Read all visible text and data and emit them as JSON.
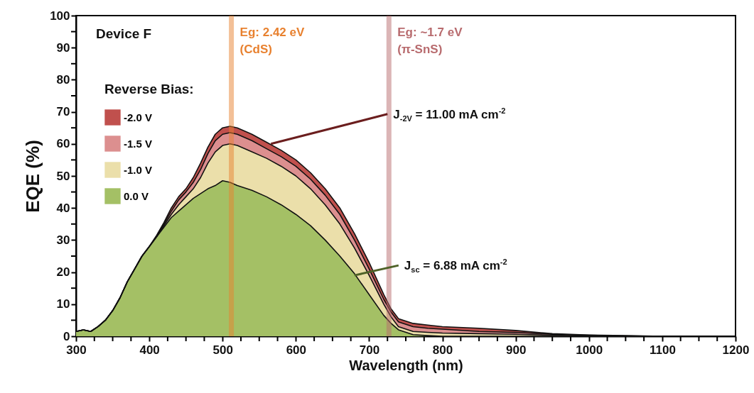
{
  "chart_data": {
    "type": "area",
    "xlabel": "Wavelength (nm)",
    "ylabel": "EQE (%)",
    "legend_title": "Reverse Bias:",
    "legend": "top left",
    "grid": false,
    "x": [
      300,
      310,
      320,
      330,
      340,
      350,
      360,
      370,
      380,
      390,
      400,
      410,
      420,
      430,
      440,
      450,
      460,
      470,
      480,
      490,
      500,
      510,
      520,
      540,
      560,
      580,
      600,
      620,
      640,
      660,
      680,
      700,
      720,
      730,
      740,
      760,
      780,
      800,
      850,
      900,
      950,
      1000,
      1050,
      1100
    ],
    "series": [
      {
        "name": "-2.0 V",
        "color": "#c0504d",
        "values": [
          1.5,
          2,
          1.5,
          3,
          5,
          8,
          12,
          17,
          21,
          25,
          28,
          31.5,
          35.5,
          40,
          43.5,
          46,
          49.5,
          54,
          59,
          63,
          65,
          65.5,
          65,
          63,
          60.5,
          58,
          55,
          51,
          46,
          40,
          32,
          23,
          13,
          8.5,
          5.5,
          4,
          3.5,
          3,
          2.5,
          1.8,
          0.8,
          0.4,
          0.2,
          0
        ]
      },
      {
        "name": "-1.5 V",
        "color": "#dc8f8f",
        "values": [
          1.5,
          2,
          1.5,
          3,
          5,
          8,
          12,
          17,
          21,
          25,
          28,
          31.2,
          35,
          39,
          42.5,
          45,
          48,
          52,
          57,
          61,
          63,
          63.5,
          63,
          61,
          58.5,
          56,
          53,
          49,
          44,
          38,
          30,
          21,
          11.5,
          7.5,
          4.5,
          3,
          2.5,
          2.2,
          1.5,
          1.2,
          0.6,
          0.3,
          0.1,
          0
        ]
      },
      {
        "name": "-1.0 V",
        "color": "#ebdfaa",
        "values": [
          1.5,
          2,
          1.5,
          3,
          5,
          8,
          12,
          17,
          21,
          25,
          28,
          31,
          34.5,
          38,
          41,
          43.5,
          46,
          49.5,
          54,
          57.5,
          59.5,
          60,
          59.5,
          57.5,
          55.5,
          53,
          50,
          46,
          41,
          35,
          27.5,
          19,
          10,
          6,
          3,
          1.5,
          1.2,
          1,
          0.8,
          0.6,
          0.3,
          0.1,
          0,
          0
        ]
      },
      {
        "name": "0.0 V",
        "color": "#a4c065",
        "values": [
          1.5,
          2,
          1.5,
          3,
          5,
          8,
          12,
          17,
          21,
          25,
          28,
          31,
          34,
          37,
          39,
          41,
          43,
          44.5,
          46,
          47,
          48.5,
          48,
          47,
          45.5,
          43.5,
          41,
          38,
          34.5,
          30,
          25,
          19.5,
          13,
          6.5,
          4,
          2,
          0.5,
          0.2,
          0,
          0,
          0,
          0,
          0,
          0,
          0
        ]
      }
    ],
    "xlim": [
      300,
      1200
    ],
    "xticks": [
      300,
      {
        "value": 325,
        "label": null
      },
      {
        "value": 350,
        "label": null
      },
      {
        "value": 375,
        "label": null
      },
      400,
      {
        "value": 425,
        "label": null
      },
      {
        "value": 450,
        "label": null
      },
      {
        "value": 475,
        "label": null
      },
      500,
      {
        "value": 525,
        "label": null
      },
      {
        "value": 550,
        "label": null
      },
      {
        "value": 575,
        "label": null
      },
      600,
      {
        "value": 625,
        "label": null
      },
      {
        "value": 650,
        "label": null
      },
      {
        "value": 675,
        "label": null
      },
      700,
      {
        "value": 725,
        "label": null
      },
      {
        "value": 750,
        "label": null
      },
      {
        "value": 775,
        "label": null
      },
      800,
      {
        "value": 825,
        "label": null
      },
      {
        "value": 850,
        "label": null
      },
      {
        "value": 875,
        "label": null
      },
      900,
      {
        "value": 925,
        "label": null
      },
      {
        "value": 950,
        "label": null
      },
      {
        "value": 975,
        "label": null
      },
      1000,
      {
        "value": 1025,
        "label": null
      },
      {
        "value": 1050,
        "label": null
      },
      {
        "value": 1075,
        "label": null
      },
      1100,
      {
        "value": 1125,
        "label": null
      },
      {
        "value": 1150,
        "label": null
      },
      {
        "value": 1175,
        "label": null
      },
      1200
    ],
    "ylim": [
      0,
      100
    ],
    "yticks": [
      0,
      {
        "value": 5,
        "label": null
      },
      10,
      {
        "value": 15,
        "label": null
      },
      20,
      {
        "value": 25,
        "label": null
      },
      30,
      {
        "value": 35,
        "label": null
      },
      40,
      {
        "value": 45,
        "label": null
      },
      50,
      {
        "value": 55,
        "label": null
      },
      60,
      {
        "value": 65,
        "label": null
      },
      70,
      {
        "value": 75,
        "label": null
      },
      80,
      {
        "value": 85,
        "label": null
      },
      90,
      {
        "value": 95,
        "label": null
      },
      100
    ],
    "ref_lines": [
      {
        "axis": "x",
        "value": 512,
        "color": "#e8812f"
      },
      {
        "axis": "x",
        "value": 727,
        "color": "#b86b6e"
      }
    ],
    "annotations": [
      "Device F",
      {
        "text": "Eg: 2.42 eV\n(CdS)",
        "x": 512,
        "y": 100
      },
      {
        "text": "Eg: ~1.7 eV\n(π-SnS)",
        "x": 727,
        "y": 100
      },
      {
        "text": "J$_{-2V}$ = 11.00 mA cm$^{-2}$",
        "x": 566,
        "y": 60
      },
      {
        "text": "J$_{sc}$ = 6.88 mA cm$^{-2}$",
        "x": 680,
        "y": 19
      }
    ]
  }
}
